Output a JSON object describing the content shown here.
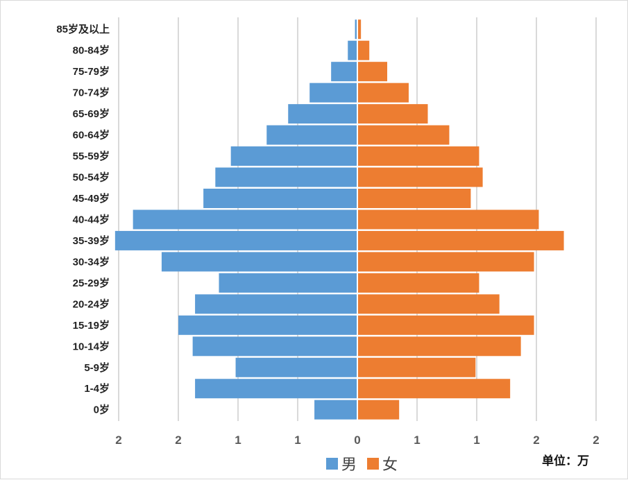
{
  "chart_data": {
    "type": "bar",
    "orientation": "horizontal-population-pyramid",
    "categories": [
      "85岁及以上",
      "80-84岁",
      "75-79岁",
      "70-74岁",
      "65-69岁",
      "60-64岁",
      "55-59岁",
      "50-54岁",
      "45-49岁",
      "40-44岁",
      "35-39岁",
      "30-34岁",
      "25-29岁",
      "20-24岁",
      "15-19岁",
      "10-14岁",
      "5-9岁",
      "1-4岁",
      "0岁"
    ],
    "series": [
      {
        "name": "男",
        "color": "#5b9bd5",
        "values": [
          0.02,
          0.08,
          0.22,
          0.4,
          0.58,
          0.76,
          1.06,
          1.19,
          1.29,
          1.88,
          2.03,
          1.64,
          1.16,
          1.36,
          1.5,
          1.38,
          1.02,
          1.36,
          0.36
        ]
      },
      {
        "name": "女",
        "color": "#ed7d31",
        "values": [
          0.03,
          0.1,
          0.25,
          0.43,
          0.59,
          0.77,
          1.02,
          1.05,
          0.95,
          1.52,
          1.73,
          1.48,
          1.02,
          1.19,
          1.48,
          1.37,
          0.99,
          1.28,
          0.35
        ]
      }
    ],
    "x_range": [
      -2,
      2
    ],
    "x_ticks": [
      -2,
      -1.5,
      -1,
      -0.5,
      0,
      0.5,
      1,
      1.5,
      2
    ],
    "x_tick_labels": [
      "2",
      "2",
      "1",
      "1",
      "0",
      "1",
      "1",
      "2",
      "2"
    ],
    "grid": "vertical",
    "legend": "bottom-center",
    "title": ""
  },
  "unit_label": "单位：万"
}
